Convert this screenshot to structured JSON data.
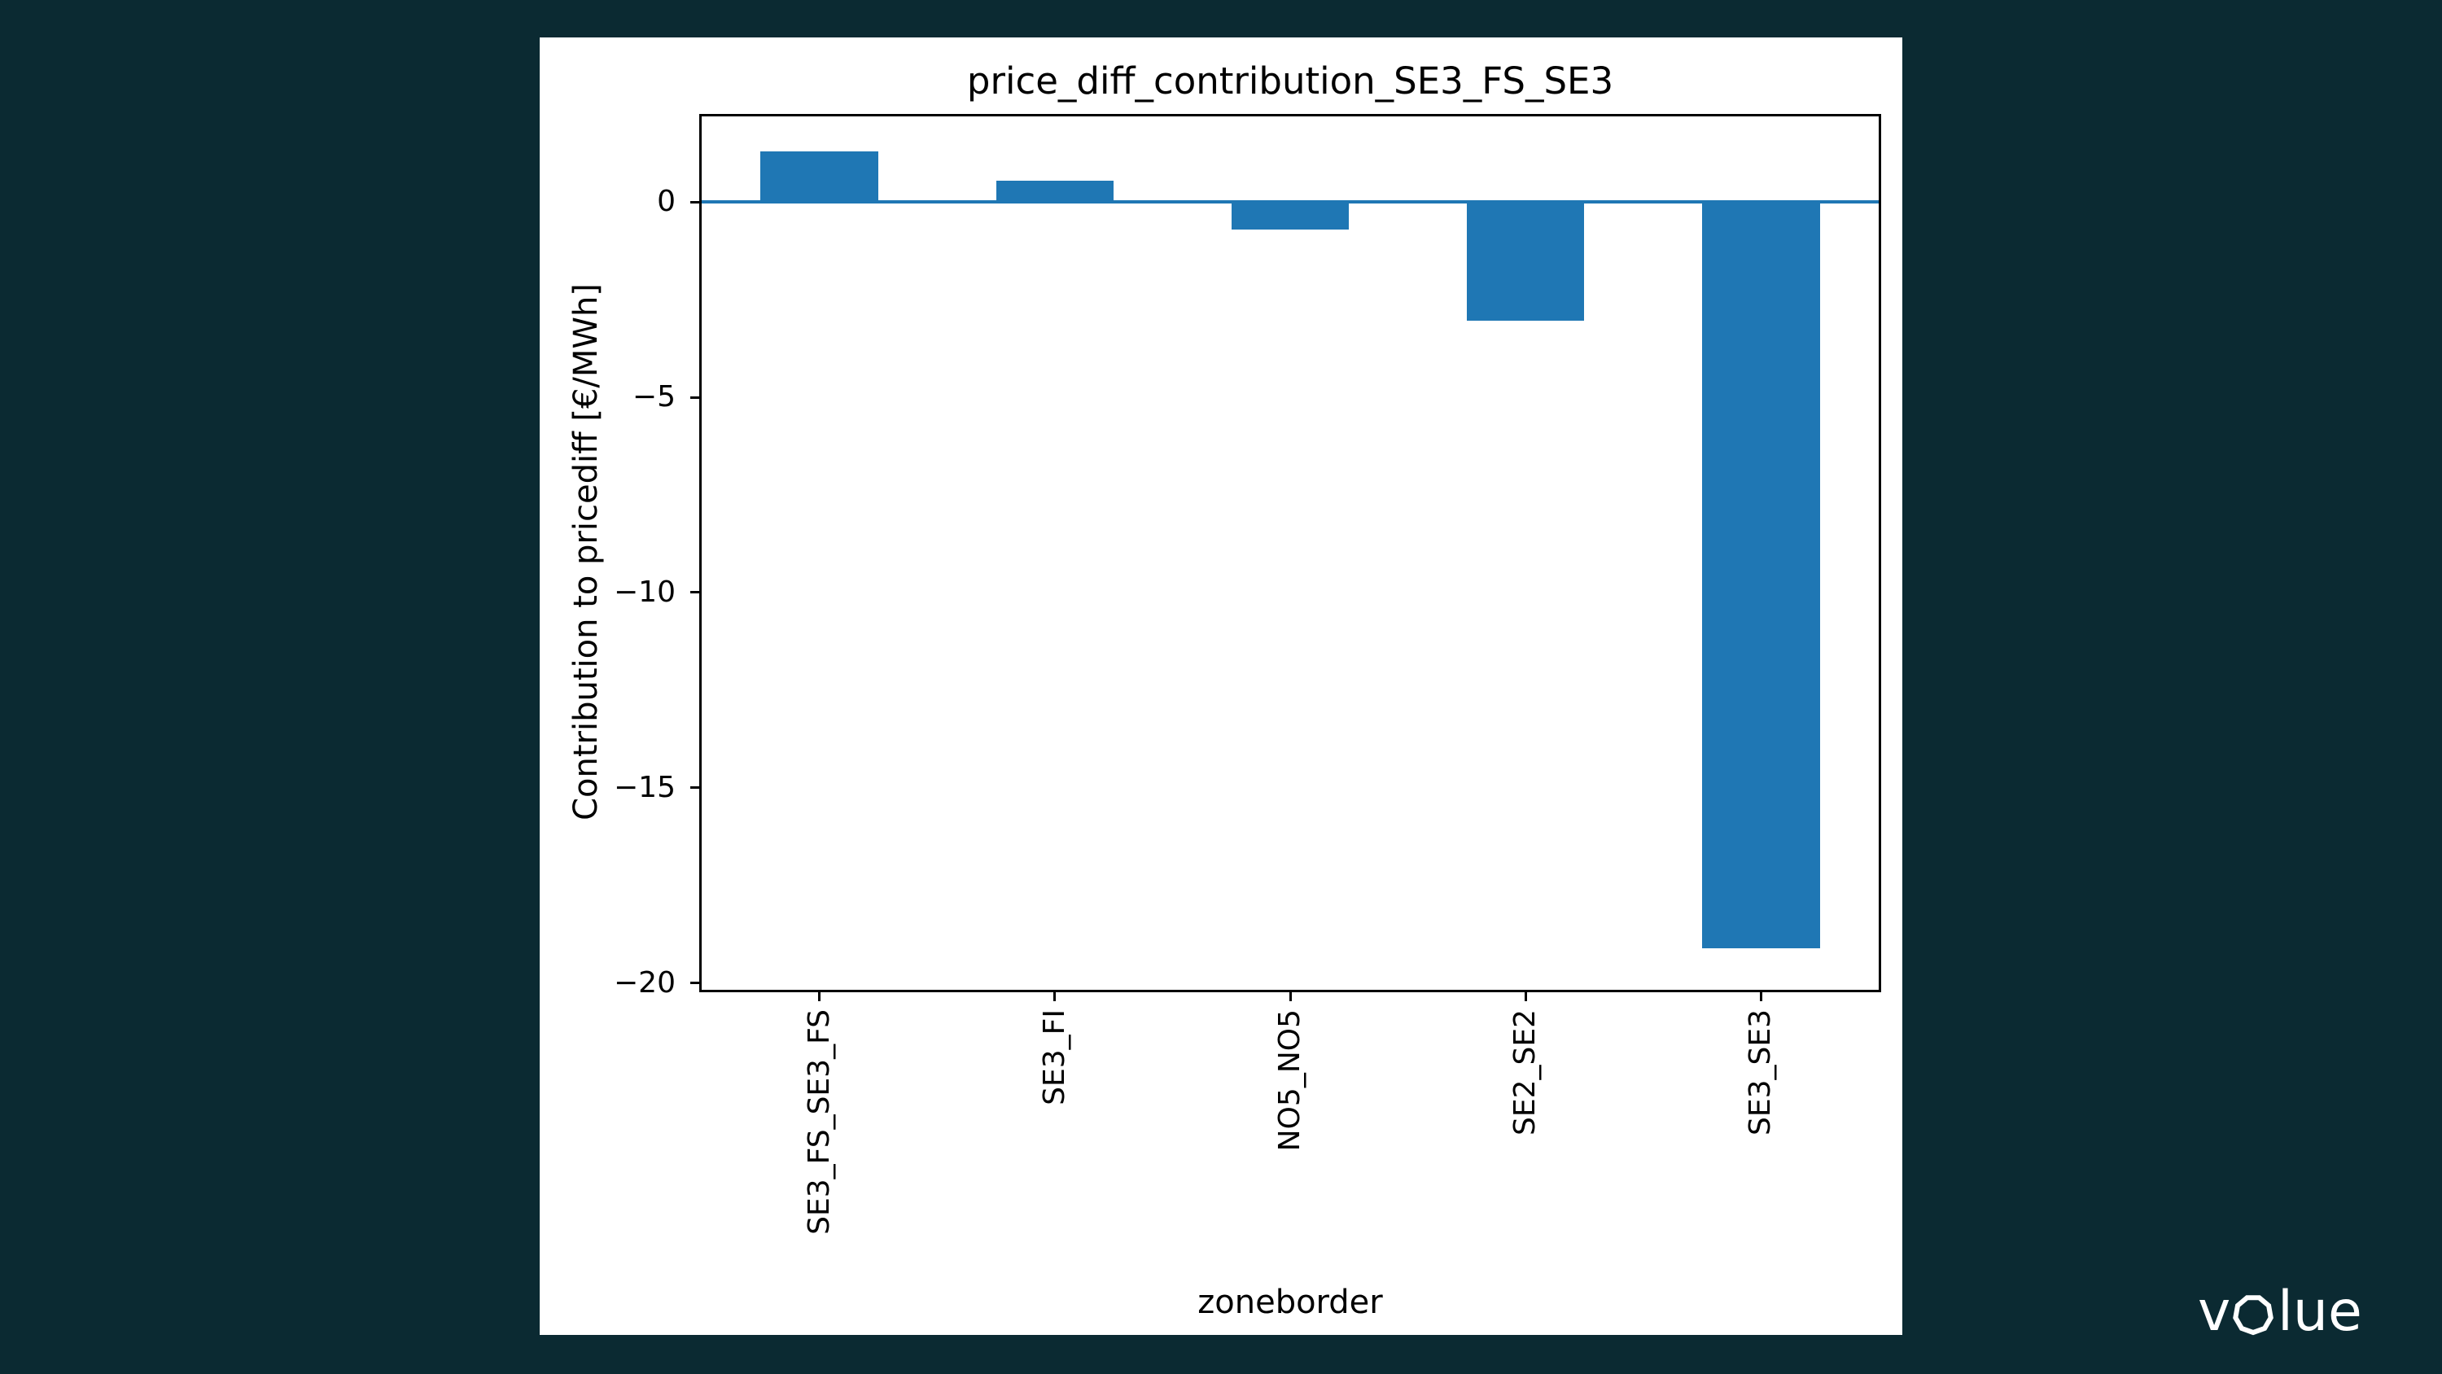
{
  "background_color": "#0b2a32",
  "panel_color": "#ffffff",
  "chart_data": {
    "type": "bar",
    "title": "price_diff_contribution_SE3_FS_SE3",
    "xlabel": "zoneborder",
    "ylabel": "Contribution to pricediff [€/MWh]",
    "categories": [
      "SE3_FS_SE3_FS",
      "SE3_FI",
      "NO5_NO5",
      "SE2_SE2",
      "SE3_SE3"
    ],
    "values": [
      1.3,
      0.55,
      -0.7,
      -3.05,
      -19.1
    ],
    "yticks": [
      0,
      -5,
      -10,
      -15,
      -20
    ],
    "ylim": [
      2.19,
      -20.17
    ],
    "bar_width_fraction": 0.5,
    "bar_color": "#1f77b4",
    "zero_line_color": "#1f77b4",
    "axis_color": "#000000",
    "text_color": "#000000",
    "grid": false,
    "legend": null
  },
  "logo": {
    "name": "volue",
    "parts": {
      "before_o": "v",
      "after_o": "lue"
    },
    "color": "#ffffff"
  }
}
